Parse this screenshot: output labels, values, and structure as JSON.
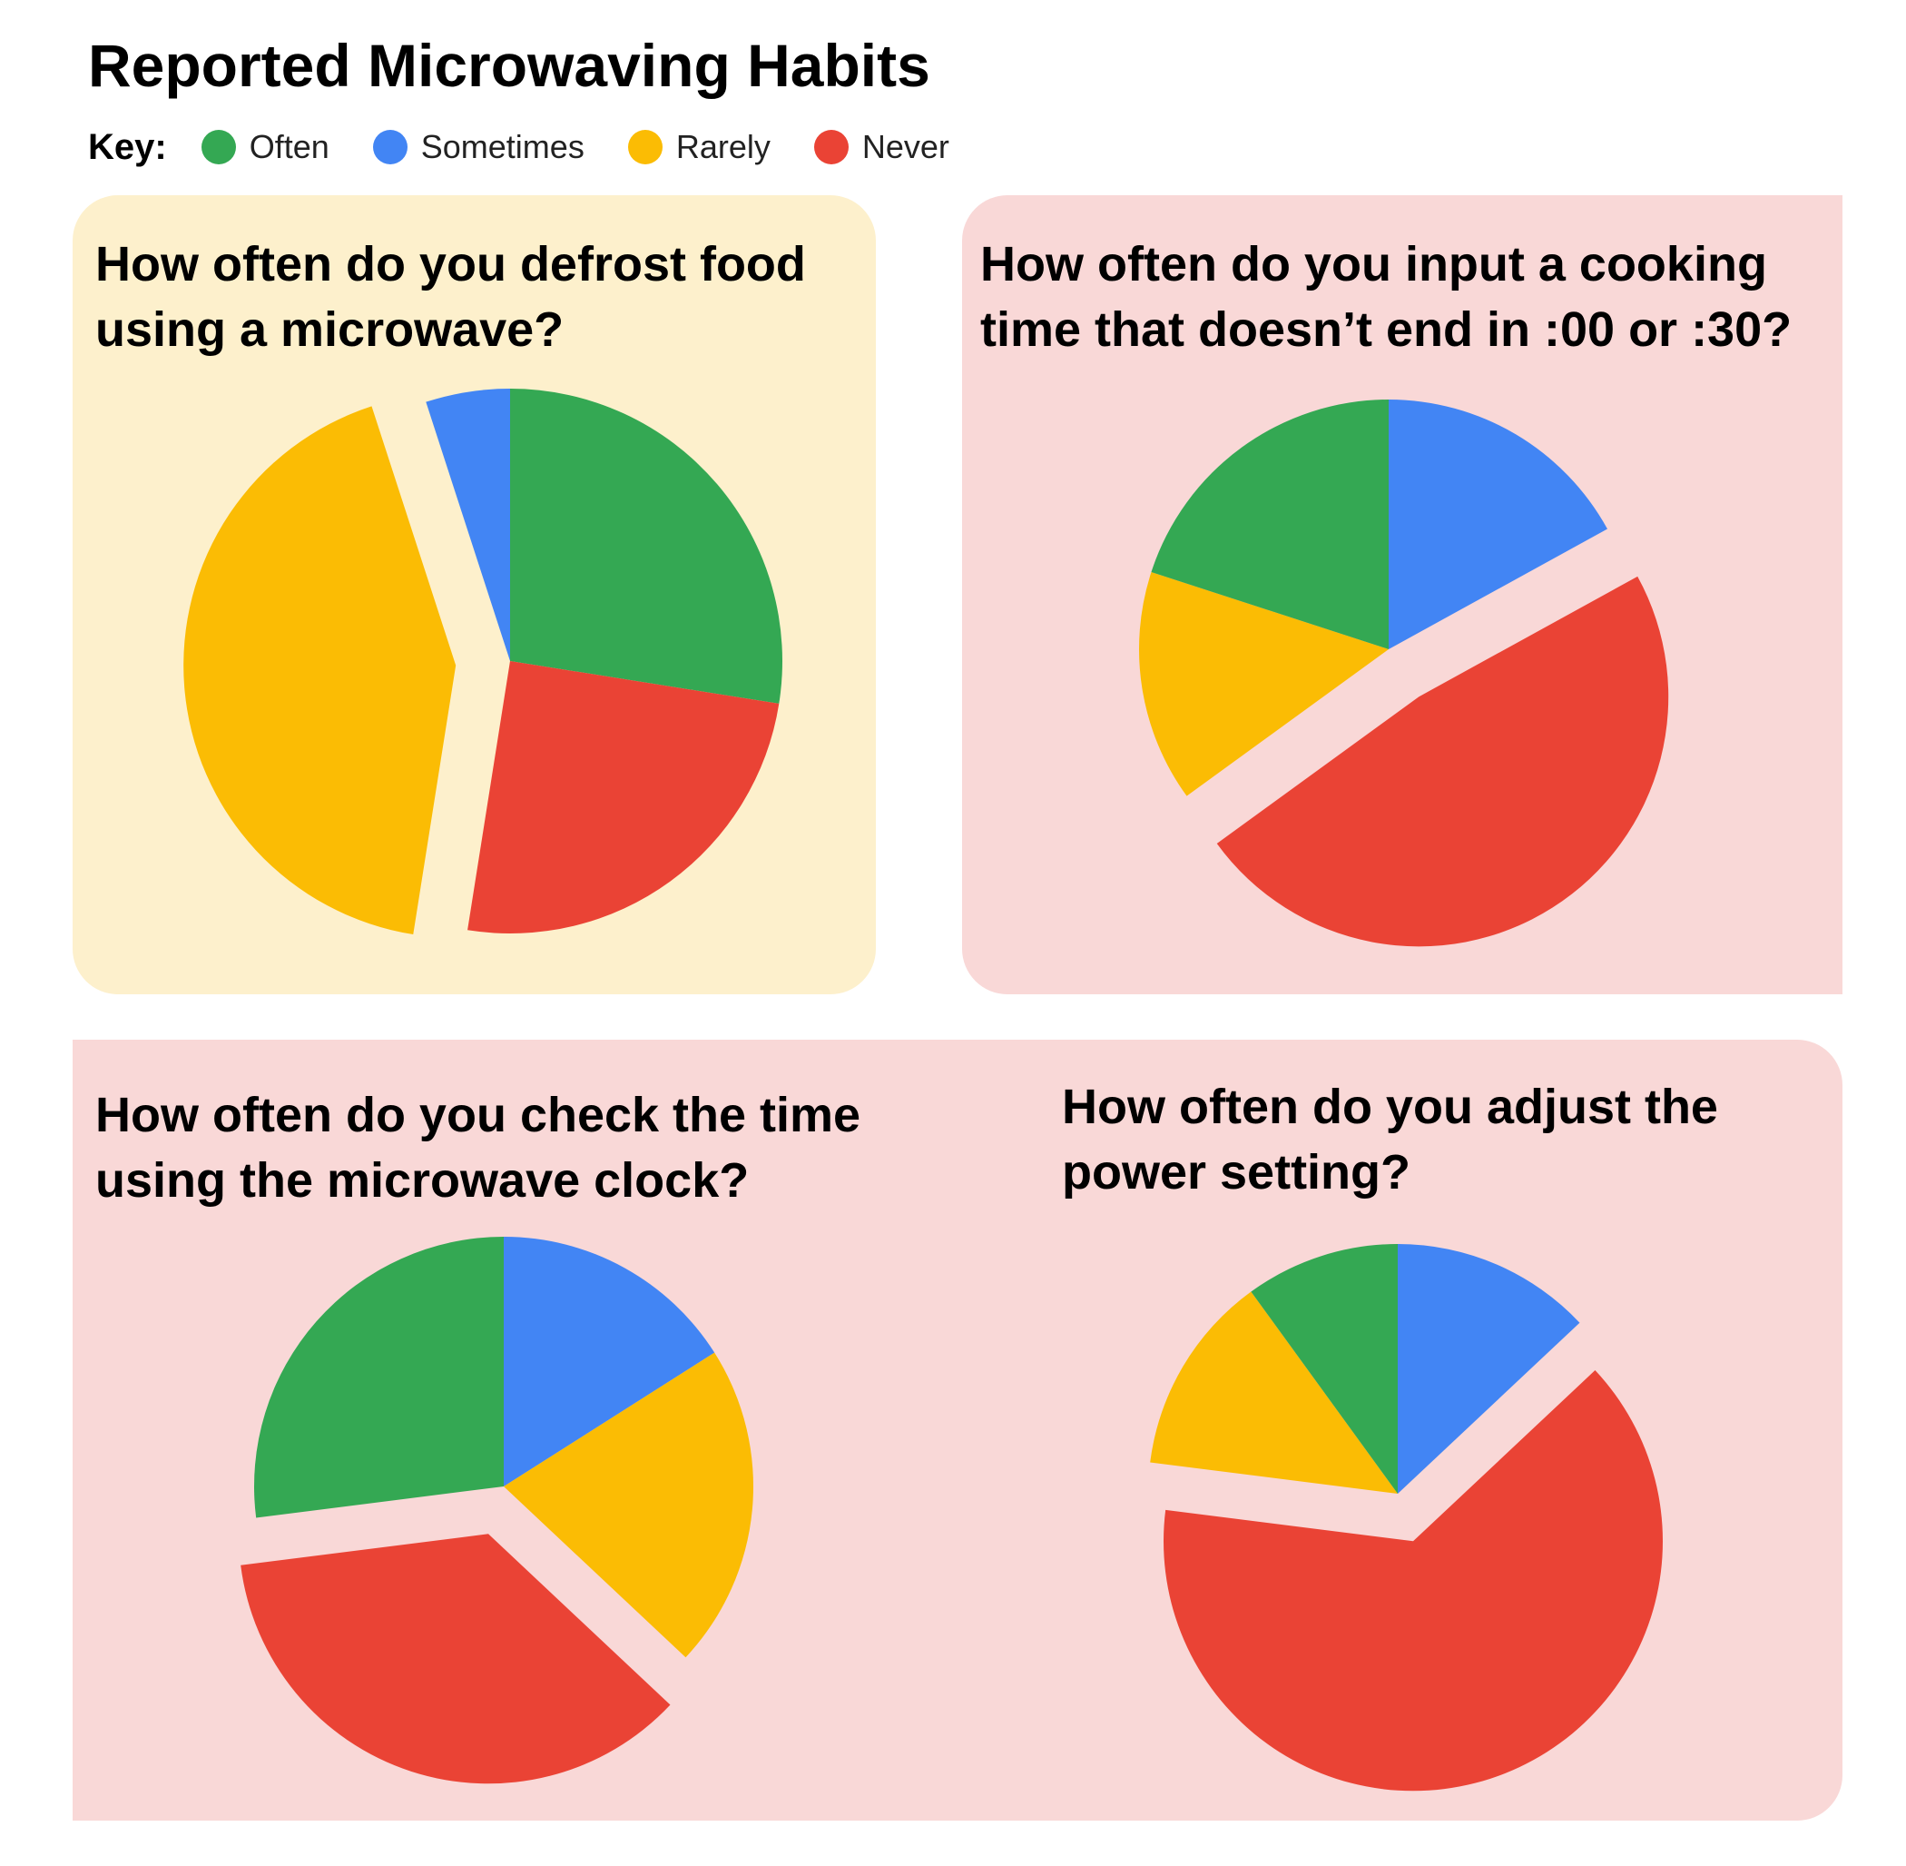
{
  "title": "Reported Microwaving Habits",
  "legend": {
    "key_label": "Key:",
    "items": [
      {
        "label": "Often",
        "color": "#34a853"
      },
      {
        "label": "Sometimes",
        "color": "#4285f4"
      },
      {
        "label": "Rarely",
        "color": "#fbbc04"
      },
      {
        "label": "Never",
        "color": "#ea4335"
      }
    ]
  },
  "panel_colors": {
    "yellow": "#fdf0cc",
    "pink": "#f9d8d7"
  },
  "chart_data": [
    {
      "type": "pie",
      "title": "How often do you defrost food using a microwave?",
      "title_lines": [
        "How often do you defrost food",
        "using a microwave?"
      ],
      "categories": [
        "Often",
        "Never",
        "Rarely",
        "Sometimes"
      ],
      "values": [
        27.5,
        25,
        42.5,
        5
      ],
      "colors": [
        "#34a853",
        "#ea4335",
        "#fbbc04",
        "#4285f4"
      ],
      "exploded": [
        "Rarely"
      ]
    },
    {
      "type": "pie",
      "title": "How often do you input a cooking time that doesn't end in :00 or :30?",
      "title_lines": [
        "How often do you input a cooking",
        "time that doesn’t end in :00 or :30?"
      ],
      "categories": [
        "Sometimes",
        "Never",
        "Rarely",
        "Often"
      ],
      "values": [
        17,
        48,
        15,
        20
      ],
      "colors": [
        "#4285f4",
        "#ea4335",
        "#fbbc04",
        "#34a853"
      ],
      "exploded": [
        "Never"
      ]
    },
    {
      "type": "pie",
      "title": "How often do you check the time using the microwave clock?",
      "title_lines": [
        "How often do you check the time",
        "using the microwave clock?"
      ],
      "categories": [
        "Sometimes",
        "Rarely",
        "Never",
        "Often"
      ],
      "values": [
        16,
        21,
        36,
        27
      ],
      "colors": [
        "#4285f4",
        "#fbbc04",
        "#ea4335",
        "#34a853"
      ],
      "exploded": [
        "Never"
      ]
    },
    {
      "type": "pie",
      "title": "How often do you adjust the power setting?",
      "title_lines": [
        "How often do you adjust the",
        "power setting?"
      ],
      "categories": [
        "Sometimes",
        "Never",
        "Rarely",
        "Often"
      ],
      "values": [
        13,
        64,
        13,
        10
      ],
      "colors": [
        "#4285f4",
        "#ea4335",
        "#fbbc04",
        "#34a853"
      ],
      "exploded": [
        "Never"
      ]
    }
  ]
}
